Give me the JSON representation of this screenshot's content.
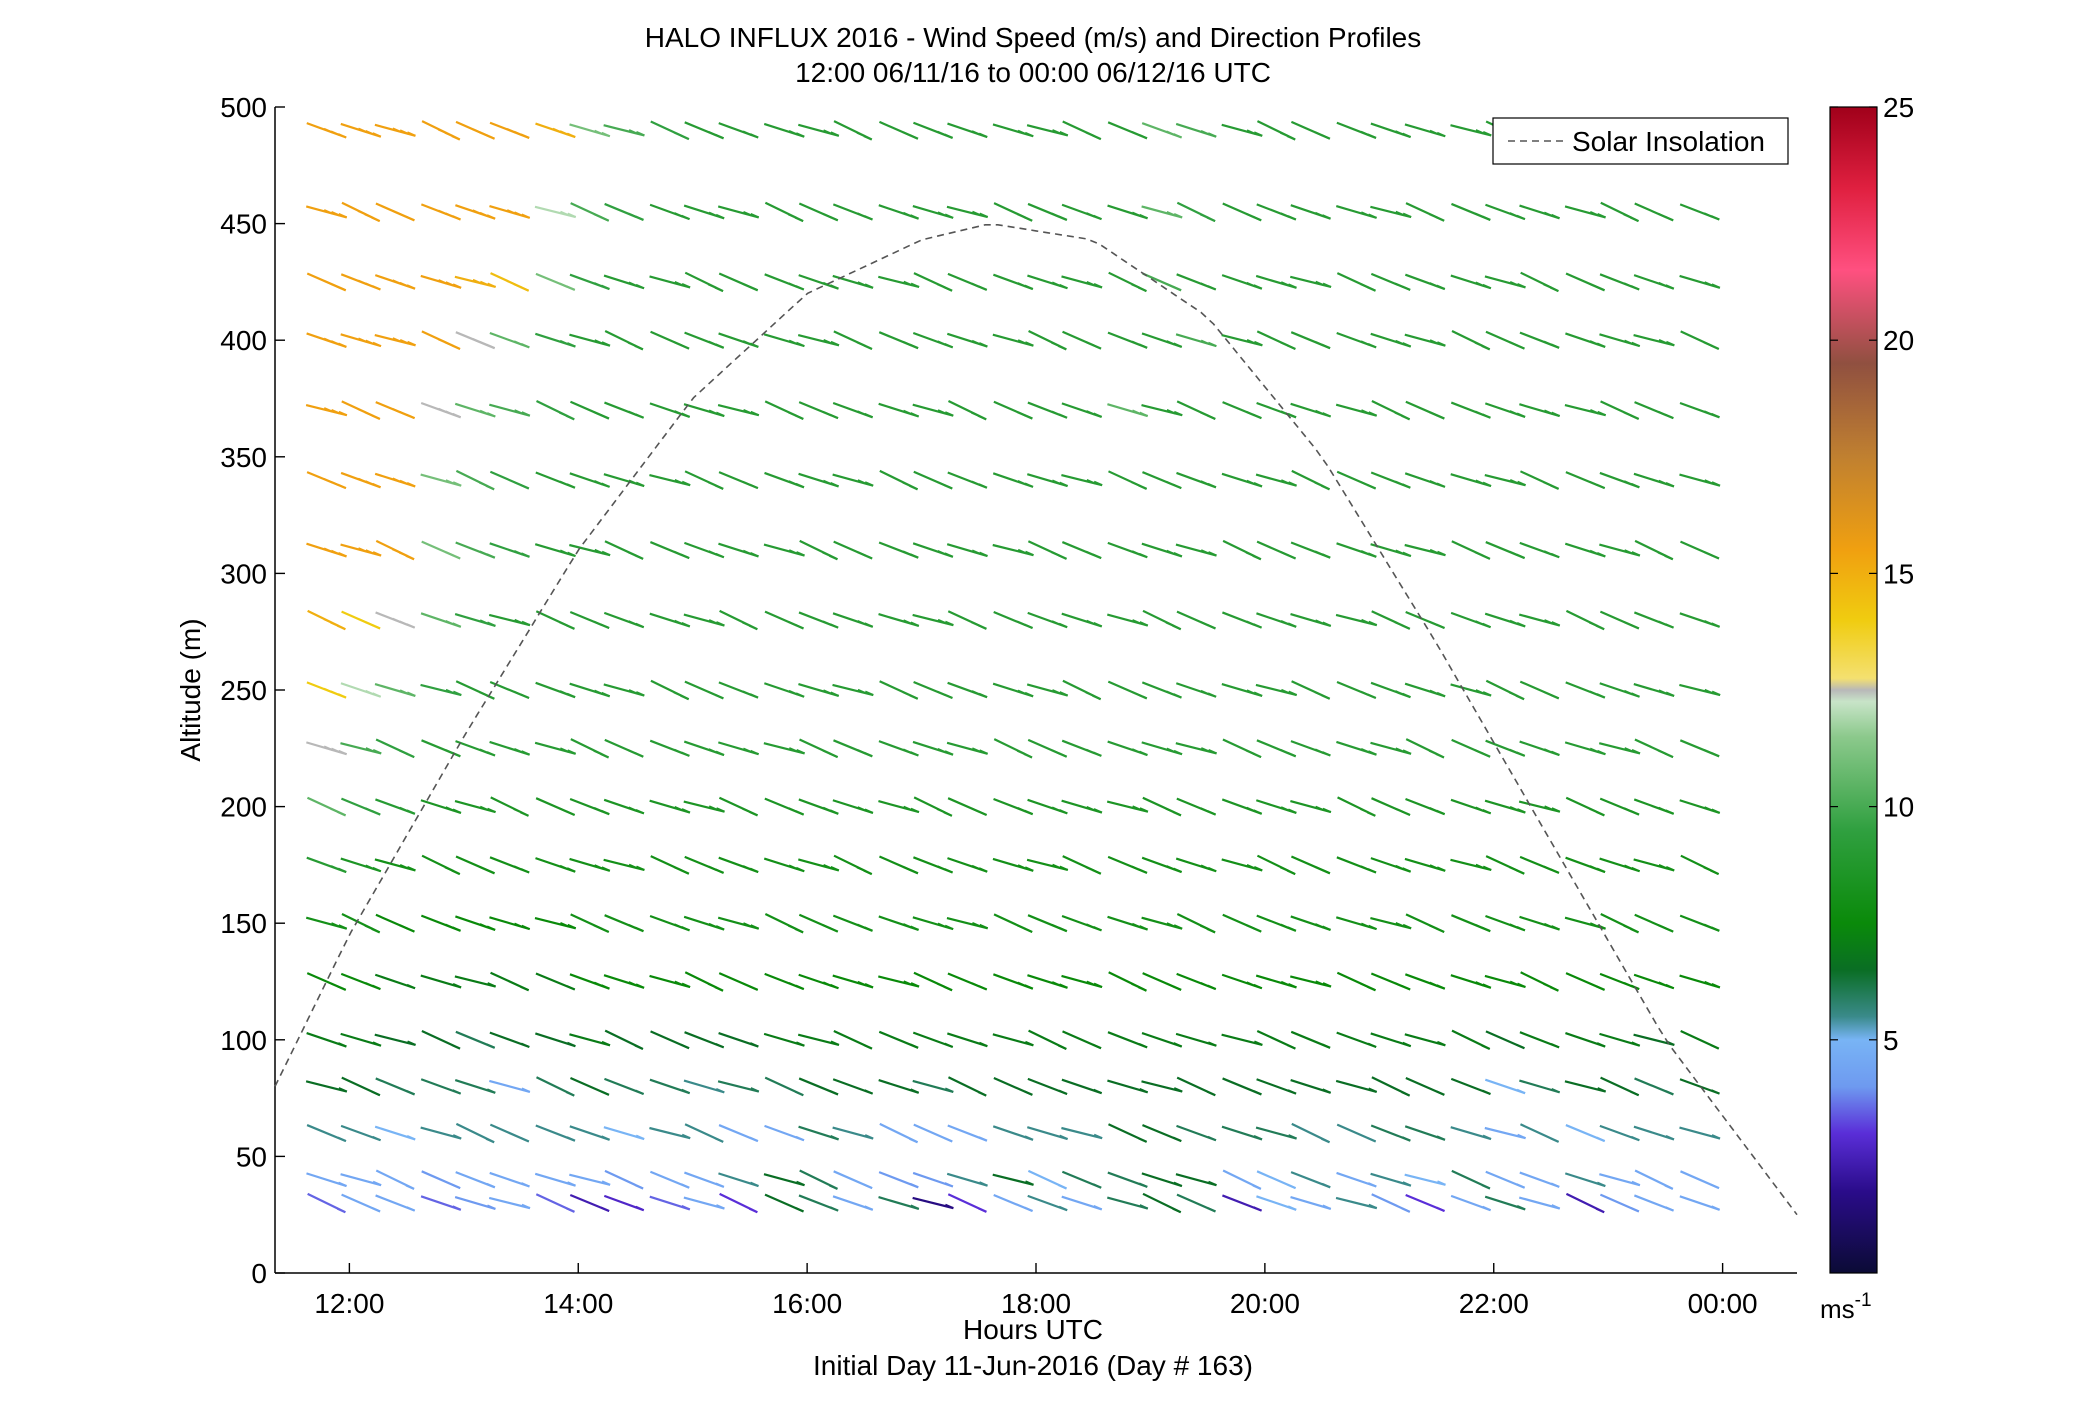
{
  "chart_data": {
    "type": "wind-barb profile",
    "title": "HALO INFLUX 2016 - Wind Speed (m/s) and Direction Profiles",
    "subtitle": "12:00 06/11/16 to 00:00 06/12/16  UTC",
    "xlabel": "Hours UTC",
    "xlabel2": "Initial Day 11-Jun-2016 (Day # 163)",
    "ylabel": "Altitude (m)",
    "xlim_hours": [
      11.35,
      24.65
    ],
    "ylim": [
      0,
      500
    ],
    "xticks": [
      12,
      14,
      16,
      18,
      20,
      22,
      24
    ],
    "xtick_labels": [
      "12:00",
      "14:00",
      "16:00",
      "18:00",
      "20:00",
      "22:00",
      "00:00"
    ],
    "yticks": [
      0,
      50,
      100,
      150,
      200,
      250,
      300,
      350,
      400,
      450,
      500
    ],
    "ytick_labels": [
      "0",
      "50",
      "100",
      "150",
      "200",
      "250",
      "300",
      "350",
      "400",
      "450",
      "500"
    ],
    "legend": {
      "placement": "top-right",
      "entries": [
        "Solar Insolation"
      ]
    },
    "colorbar": {
      "range": [
        0,
        25
      ],
      "ticks": [
        5,
        10,
        15,
        20,
        25
      ],
      "tick_labels": [
        "5",
        "10",
        "15",
        "20",
        "25"
      ],
      "unit_label": "ms",
      "unit_exp": "-1"
    },
    "solar_insolation": {
      "peak_time_hours": 17.6,
      "peak_altitude_equiv": 450,
      "samples": [
        [
          11.35,
          80
        ],
        [
          12.0,
          145
        ],
        [
          13.0,
          230
        ],
        [
          14.0,
          310
        ],
        [
          15.0,
          375
        ],
        [
          16.0,
          420
        ],
        [
          17.0,
          443
        ],
        [
          17.6,
          450
        ],
        [
          18.5,
          443
        ],
        [
          19.5,
          410
        ],
        [
          20.5,
          350
        ],
        [
          21.5,
          270
        ],
        [
          22.5,
          185
        ],
        [
          23.5,
          100
        ],
        [
          24.65,
          25
        ]
      ]
    },
    "times_hours": [
      11.8,
      12.1,
      12.4,
      12.8,
      13.1,
      13.4,
      13.8,
      14.1,
      14.4,
      14.8,
      15.1,
      15.4,
      15.8,
      16.1,
      16.4,
      16.8,
      17.1,
      17.4,
      17.8,
      18.1,
      18.4,
      18.8,
      19.1,
      19.4,
      19.8,
      20.1,
      20.4,
      20.8,
      21.1,
      21.4,
      21.8,
      22.1,
      22.4,
      22.8,
      23.1,
      23.4,
      23.8
    ],
    "altitudes": [
      30,
      40,
      60,
      80,
      100,
      125,
      150,
      175,
      200,
      225,
      250,
      280,
      310,
      340,
      370,
      400,
      425,
      455,
      490
    ],
    "speed_anchor_rows": [
      [
        3.5,
        4.5,
        4.5,
        3.5,
        4.0,
        4.5,
        3.5,
        2.5,
        2.8,
        3.5,
        4.5,
        3.0,
        6.5,
        6.0,
        4.5,
        6.0,
        1.8,
        3.0,
        4.5,
        5.5,
        4.5,
        6.0,
        6.5,
        6.0,
        2.5,
        5.0,
        4.5,
        5.5,
        4.0,
        3.0,
        4.5,
        6.0,
        4.5,
        2.5,
        4.0,
        4.5,
        4.5
      ],
      [
        4.5,
        4.5,
        4.5,
        4.0,
        4.5,
        4.5,
        4.5,
        4.5,
        4.0,
        4.5,
        4.5,
        5.5,
        6.5,
        6.0,
        4.5,
        4.0,
        4.0,
        5.5,
        6.5,
        5.0,
        6.0,
        6.0,
        6.5,
        6.5,
        4.5,
        5.0,
        5.5,
        4.5,
        5.5,
        5.0,
        6.0,
        4.5,
        4.5,
        5.5,
        4.5,
        4.5,
        4.5
      ],
      [
        5.5,
        5.5,
        5.0,
        5.5,
        5.5,
        5.5,
        5.5,
        5.5,
        5.0,
        5.5,
        5.5,
        4.5,
        4.5,
        6.0,
        5.5,
        4.5,
        4.5,
        4.5,
        5.5,
        5.5,
        5.5,
        6.5,
        6.5,
        6.0,
        6.0,
        6.0,
        5.5,
        5.5,
        6.0,
        6.0,
        5.5,
        4.5,
        5.5,
        5.0,
        5.5,
        5.5,
        5.5
      ],
      [
        6.5,
        6.5,
        6.0,
        6.0,
        6.0,
        4.5,
        6.0,
        6.5,
        6.0,
        6.0,
        5.5,
        6.0,
        6.0,
        6.5,
        6.5,
        6.5,
        6.0,
        6.5,
        6.5,
        6.5,
        6.5,
        6.5,
        6.5,
        6.5,
        6.5,
        6.5,
        6.5,
        6.5,
        6.5,
        6.5,
        6.5,
        5.0,
        6.0,
        6.5,
        6.5,
        6.0,
        6.5
      ],
      [
        7.0,
        7.0,
        6.5,
        6.5,
        6.0,
        6.5,
        6.5,
        7.0,
        6.5,
        6.5,
        6.5,
        6.5,
        7.0,
        7.0,
        7.0,
        7.0,
        7.0,
        7.0,
        7.0,
        7.0,
        7.0,
        7.0,
        7.0,
        7.0,
        7.0,
        7.0,
        7.0,
        7.0,
        7.0,
        7.0,
        7.0,
        6.5,
        7.0,
        7.0,
        7.0,
        6.5,
        7.0
      ],
      [
        7.5,
        7.5,
        7.0,
        7.0,
        7.0,
        7.0,
        7.0,
        7.5,
        7.5,
        7.5,
        7.5,
        7.5,
        7.5,
        7.5,
        7.5,
        7.5,
        7.5,
        7.5,
        7.5,
        7.5,
        7.5,
        7.5,
        7.5,
        7.5,
        7.5,
        7.5,
        7.5,
        7.5,
        7.5,
        7.5,
        7.5,
        7.5,
        7.5,
        7.5,
        7.5,
        7.5,
        7.5
      ],
      [
        8.0,
        8.0,
        7.5,
        7.5,
        7.5,
        7.5,
        7.5,
        8.0,
        8.0,
        8.0,
        8.0,
        8.0,
        8.0,
        8.0,
        8.0,
        8.0,
        8.0,
        8.0,
        8.0,
        8.0,
        8.0,
        8.0,
        8.0,
        8.0,
        8.0,
        8.0,
        8.0,
        8.0,
        8.0,
        8.0,
        8.0,
        8.0,
        8.0,
        8.0,
        8.0,
        8.0,
        8.0
      ],
      [
        9.0,
        8.5,
        8.0,
        8.0,
        8.0,
        8.0,
        8.0,
        8.0,
        8.0,
        8.0,
        8.0,
        8.0,
        8.0,
        8.0,
        8.0,
        8.0,
        8.0,
        8.0,
        8.0,
        8.0,
        8.0,
        8.0,
        8.0,
        8.0,
        8.0,
        8.0,
        8.0,
        8.0,
        8.0,
        8.0,
        8.0,
        8.0,
        8.0,
        8.0,
        8.0,
        8.0,
        8.0
      ],
      [
        10.5,
        9.5,
        9.0,
        8.5,
        8.5,
        8.5,
        8.5,
        8.5,
        8.5,
        8.5,
        8.5,
        8.5,
        8.5,
        8.5,
        8.5,
        8.5,
        8.5,
        8.5,
        8.5,
        8.5,
        8.5,
        8.5,
        8.5,
        8.5,
        8.5,
        8.5,
        8.5,
        8.5,
        8.5,
        8.5,
        8.5,
        8.5,
        8.5,
        8.5,
        8.5,
        8.5,
        8.5
      ],
      [
        12.5,
        10.0,
        9.5,
        9.0,
        9.0,
        9.0,
        9.0,
        9.0,
        9.0,
        9.0,
        9.0,
        9.0,
        9.0,
        9.0,
        9.0,
        9.0,
        9.0,
        9.0,
        9.0,
        9.0,
        9.0,
        9.0,
        9.0,
        9.0,
        9.0,
        9.0,
        9.0,
        9.0,
        9.0,
        9.0,
        9.0,
        9.0,
        9.0,
        9.0,
        9.0,
        9.0,
        9.0
      ],
      [
        14.0,
        12.0,
        10.5,
        9.5,
        9.0,
        9.0,
        9.0,
        9.0,
        9.0,
        9.0,
        9.0,
        9.0,
        9.0,
        9.0,
        9.0,
        9.0,
        9.0,
        9.0,
        9.0,
        9.0,
        9.0,
        9.0,
        9.0,
        9.0,
        9.0,
        9.0,
        9.0,
        9.0,
        9.0,
        9.0,
        9.0,
        9.0,
        9.0,
        9.0,
        9.0,
        9.0,
        9.0
      ],
      [
        15.0,
        14.0,
        12.5,
        10.5,
        9.5,
        9.0,
        9.0,
        9.0,
        9.0,
        9.0,
        9.0,
        9.0,
        9.0,
        9.0,
        9.0,
        9.0,
        9.0,
        9.0,
        9.0,
        9.0,
        9.0,
        9.0,
        9.0,
        9.0,
        9.0,
        9.0,
        9.0,
        9.0,
        9.0,
        9.0,
        9.0,
        9.0,
        9.0,
        9.0,
        9.0,
        9.0,
        9.0
      ],
      [
        15.5,
        15.5,
        15.5,
        11.0,
        10.0,
        9.5,
        9.0,
        9.0,
        9.0,
        9.0,
        9.0,
        9.0,
        9.0,
        9.0,
        9.0,
        9.0,
        9.0,
        9.0,
        9.0,
        9.0,
        9.0,
        9.0,
        9.0,
        9.0,
        9.0,
        9.0,
        9.0,
        9.0,
        9.0,
        9.0,
        9.0,
        9.0,
        9.0,
        9.0,
        9.0,
        9.0,
        9.0
      ],
      [
        15.5,
        15.5,
        15.5,
        11.0,
        10.0,
        9.5,
        9.0,
        9.0,
        9.0,
        9.0,
        9.0,
        9.0,
        9.0,
        9.0,
        9.0,
        9.0,
        9.0,
        9.0,
        9.0,
        9.0,
        9.0,
        9.0,
        9.0,
        9.0,
        9.0,
        9.0,
        9.0,
        9.0,
        9.0,
        9.0,
        9.0,
        9.0,
        9.0,
        9.0,
        9.0,
        9.0,
        9.0
      ],
      [
        15.5,
        15.5,
        15.5,
        12.5,
        10.5,
        10.0,
        9.5,
        9.0,
        9.0,
        9.0,
        9.0,
        9.0,
        9.0,
        9.0,
        9.0,
        9.0,
        9.0,
        9.0,
        9.0,
        9.0,
        9.0,
        10.5,
        9.0,
        9.0,
        9.0,
        9.0,
        9.0,
        9.0,
        9.0,
        9.0,
        9.0,
        9.0,
        9.0,
        9.0,
        9.0,
        9.0,
        9.0
      ],
      [
        15.5,
        15.5,
        15.5,
        15.5,
        12.5,
        10.5,
        9.5,
        9.0,
        9.0,
        9.0,
        9.0,
        9.0,
        9.0,
        9.0,
        9.0,
        9.0,
        9.0,
        9.0,
        9.0,
        9.0,
        9.0,
        9.0,
        9.0,
        10.0,
        9.0,
        9.0,
        9.0,
        9.0,
        9.0,
        9.0,
        9.0,
        9.0,
        9.0,
        9.0,
        9.0,
        9.0,
        9.0
      ],
      [
        15.5,
        15.5,
        15.5,
        15.5,
        15.0,
        14.5,
        11.0,
        9.5,
        9.0,
        9.0,
        9.0,
        9.0,
        9.0,
        9.0,
        9.0,
        9.0,
        9.0,
        9.0,
        9.0,
        9.0,
        9.0,
        9.0,
        10.0,
        9.0,
        9.0,
        9.0,
        9.0,
        9.0,
        9.0,
        9.0,
        9.0,
        9.0,
        9.0,
        9.0,
        9.0,
        9.0,
        9.0
      ],
      [
        15.5,
        15.5,
        15.5,
        15.5,
        15.5,
        15.5,
        12.0,
        10.0,
        9.5,
        9.0,
        9.0,
        9.0,
        9.0,
        9.0,
        9.0,
        9.0,
        9.0,
        9.0,
        9.0,
        9.0,
        9.0,
        9.0,
        10.5,
        9.5,
        9.0,
        9.0,
        9.0,
        9.0,
        9.0,
        9.0,
        9.0,
        9.0,
        9.0,
        9.0,
        9.0,
        9.0,
        9.0
      ],
      [
        15.5,
        15.5,
        15.5,
        15.5,
        15.5,
        15.5,
        15.0,
        11.0,
        10.0,
        9.5,
        9.0,
        9.0,
        9.0,
        9.0,
        9.0,
        9.0,
        9.0,
        9.0,
        9.0,
        9.0,
        9.0,
        9.0,
        10.5,
        10.0,
        9.0,
        9.0,
        9.0,
        9.0,
        9.0,
        9.0,
        9.0,
        9.0,
        9.0,
        9.0,
        9.0,
        9.0,
        9.0
      ]
    ],
    "direction_deg_typical": 250
  }
}
